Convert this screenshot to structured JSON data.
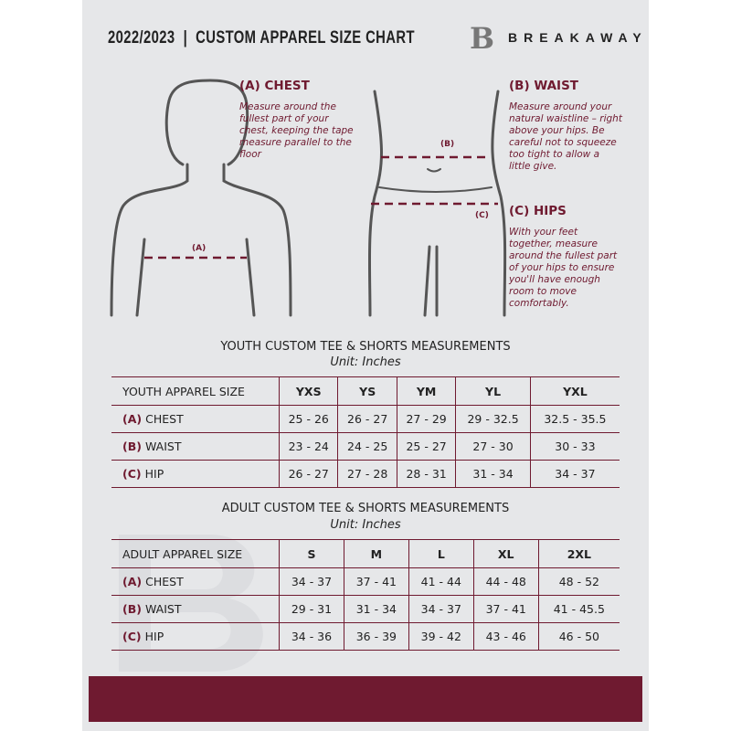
{
  "header": {
    "title": "2022/2023  |  CUSTOM APPAREL SIZE CHART",
    "brand": "BREAKAWAY",
    "logo_letter": "B"
  },
  "guide": {
    "chest": {
      "title": "(A) CHEST",
      "desc": "Measure around the fullest part of your chest, keeping the tape measure parallel to the floor",
      "marker": "(A)"
    },
    "waist": {
      "title": "(B) WAIST",
      "desc": "Measure around your natural waistline – right above your hips. Be careful not to squeeze too tight to allow a little give.",
      "marker": "(B)"
    },
    "hips": {
      "title": "(C) HIPS",
      "desc": "With your feet together, measure around the fullest part of your hips to ensure you'll have enough room to move comfortably.",
      "marker": "(C)"
    }
  },
  "youth": {
    "title": "YOUTH CUSTOM TEE & SHORTS MEASUREMENTS",
    "unit": "Unit: Inches",
    "header": [
      "YOUTH APPAREL SIZE",
      "YXS",
      "YS",
      "YM",
      "YL",
      "YXL"
    ],
    "rows": [
      {
        "letter": "(A)",
        "label": "CHEST",
        "values": [
          "25 - 26",
          "26 - 27",
          "27 - 29",
          "29 - 32.5",
          "32.5 - 35.5"
        ]
      },
      {
        "letter": "(B)",
        "label": "WAIST",
        "values": [
          "23 - 24",
          "24 - 25",
          "25 - 27",
          "27 - 30",
          "30 - 33"
        ]
      },
      {
        "letter": "(C)",
        "label": "HIP",
        "values": [
          "26 - 27",
          "27 - 28",
          "28 - 31",
          "31 - 34",
          "34 - 37"
        ]
      }
    ]
  },
  "adult": {
    "title": "ADULT CUSTOM TEE & SHORTS MEASUREMENTS",
    "unit": "Unit: Inches",
    "header": [
      "ADULT APPAREL SIZE",
      "S",
      "M",
      "L",
      "XL",
      "2XL"
    ],
    "rows": [
      {
        "letter": "(A)",
        "label": "CHEST",
        "values": [
          "34 - 37",
          "37 - 41",
          "41 - 44",
          "44 - 48",
          "48 - 52"
        ]
      },
      {
        "letter": "(B)",
        "label": "WAIST",
        "values": [
          "29 - 31",
          "31 - 34",
          "34 - 37",
          "37 - 41",
          "41 - 45.5"
        ]
      },
      {
        "letter": "(C)",
        "label": "HIP",
        "values": [
          "34 - 36",
          "36 - 39",
          "39 - 42",
          "43 - 46",
          "46 - 50"
        ]
      }
    ]
  },
  "colors": {
    "accent": "#6f1a30",
    "background": "#e6e7e9"
  }
}
